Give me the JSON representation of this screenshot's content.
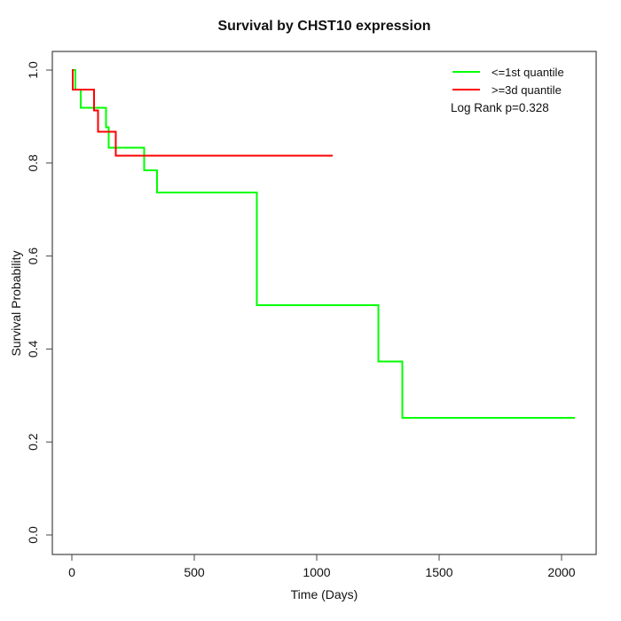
{
  "chart_data": {
    "type": "line",
    "subtype": "kaplan-meier-step",
    "title": "Survival by CHST10 expression",
    "xlabel": "Time (Days)",
    "ylabel": "Survival Probability",
    "xlim": [
      0,
      2150
    ],
    "ylim": [
      0.0,
      1.0
    ],
    "grid": false,
    "legend_position": "top-right-inside",
    "axes": {
      "x": {
        "ticks": [
          0,
          500,
          1000,
          1500,
          2000
        ]
      },
      "y": {
        "ticks": [
          0.0,
          0.2,
          0.4,
          0.6,
          0.8,
          1.0
        ]
      }
    },
    "series": [
      {
        "name": "<=1st quantile",
        "color": "#00ff00",
        "points": [
          [
            0,
            1.0
          ],
          [
            15,
            0.958
          ],
          [
            36,
            0.919
          ],
          [
            139,
            0.877
          ],
          [
            150,
            0.833
          ],
          [
            296,
            0.784
          ],
          [
            347,
            0.737
          ],
          [
            755,
            0.494
          ],
          [
            1252,
            0.373
          ],
          [
            1350,
            0.252
          ],
          [
            2054,
            0.252
          ]
        ]
      },
      {
        "name": ">=3d quantile",
        "color": "#ff0000",
        "points": [
          [
            0,
            1.0
          ],
          [
            4,
            0.958
          ],
          [
            91,
            0.913
          ],
          [
            106,
            0.867
          ],
          [
            179,
            0.816
          ],
          [
            1066,
            0.816
          ]
        ]
      }
    ],
    "annotation": "Log Rank p=0.328",
    "axis_color": "#444444",
    "curve_stroke_width": 2
  }
}
